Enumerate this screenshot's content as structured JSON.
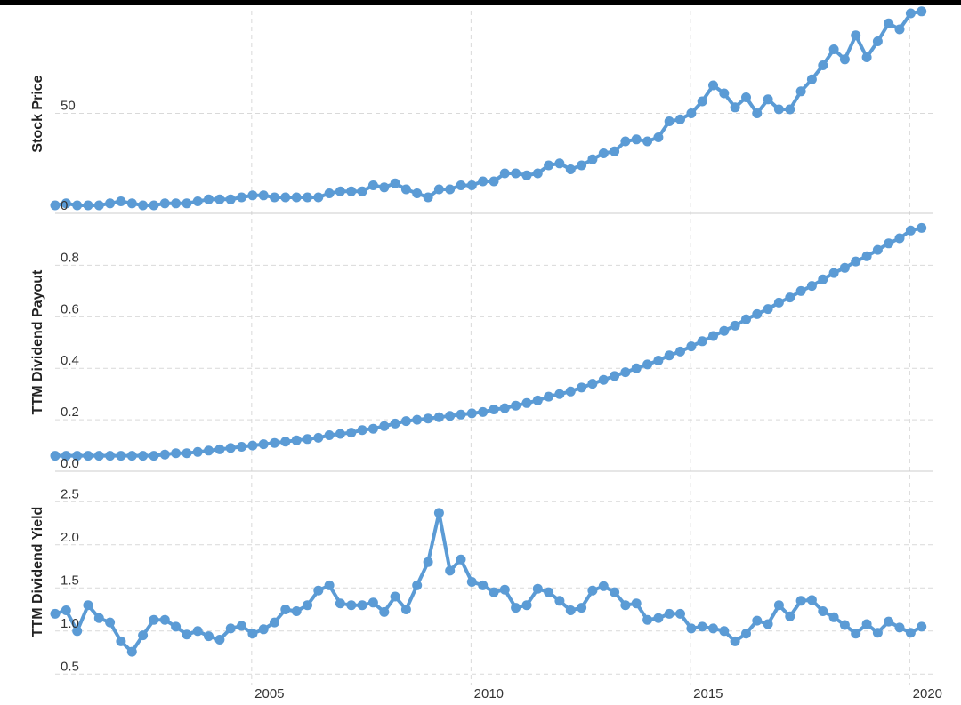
{
  "colors": {
    "series": "#5b9bd5",
    "grid": "#d9d9d9",
    "text": "#333333",
    "top_bar": "#000000"
  },
  "x_ticks": [
    "2005",
    "2010",
    "2015",
    "2020"
  ],
  "chart_data": [
    {
      "type": "line",
      "ylabel": "Stock Price",
      "y_ticks": [
        "0",
        "50"
      ],
      "xlim": [
        2000.5,
        2020.5
      ],
      "ylim": [
        0,
        100
      ],
      "grid": true,
      "series": [
        {
          "x": [
            2000.5,
            2000.75,
            2001,
            2001.25,
            2001.5,
            2001.75,
            2002,
            2002.25,
            2002.5,
            2002.75,
            2003,
            2003.25,
            2003.5,
            2003.75,
            2004,
            2004.25,
            2004.5,
            2004.75,
            2005,
            2005.25,
            2005.5,
            2005.75,
            2006,
            2006.25,
            2006.5,
            2006.75,
            2007,
            2007.25,
            2007.5,
            2007.75,
            2008,
            2008.25,
            2008.5,
            2008.75,
            2009,
            2009.25,
            2009.5,
            2009.75,
            2010,
            2010.25,
            2010.5,
            2010.75,
            2011,
            2011.25,
            2011.5,
            2011.75,
            2012,
            2012.25,
            2012.5,
            2012.75,
            2013,
            2013.25,
            2013.5,
            2013.75,
            2014,
            2014.25,
            2014.5,
            2014.75,
            2015,
            2015.25,
            2015.5,
            2015.75,
            2016,
            2016.25,
            2016.5,
            2016.75,
            2017,
            2017.25,
            2017.5,
            2017.75,
            2018,
            2018.25,
            2018.5,
            2018.75,
            2019,
            2019.25,
            2019.5,
            2019.75,
            2020,
            2020.25
          ],
          "values": [
            4,
            5,
            4,
            4,
            4,
            5,
            6,
            5,
            4,
            4,
            5,
            5,
            5,
            6,
            7,
            7,
            7,
            8,
            9,
            9,
            8,
            8,
            8,
            8,
            8,
            10,
            11,
            11,
            11,
            14,
            13,
            15,
            12,
            10,
            8,
            12,
            12,
            14,
            14,
            16,
            16,
            20,
            20,
            19,
            20,
            24,
            25,
            22,
            24,
            27,
            30,
            31,
            36,
            37,
            36,
            38,
            46,
            47,
            50,
            56,
            64,
            60,
            53,
            58,
            50,
            57,
            52,
            52,
            61,
            67,
            74,
            82,
            77,
            89,
            78,
            86,
            95,
            92,
            100,
            101
          ]
        }
      ]
    },
    {
      "type": "line",
      "ylabel": "TTM Dividend Payout",
      "y_ticks": [
        "0.0",
        "0.2",
        "0.4",
        "0.6",
        "0.8"
      ],
      "xlim": [
        2000.5,
        2020.5
      ],
      "ylim": [
        0,
        0.95
      ],
      "grid": true,
      "series": [
        {
          "x": [
            2000.5,
            2000.75,
            2001,
            2001.25,
            2001.5,
            2001.75,
            2002,
            2002.25,
            2002.5,
            2002.75,
            2003,
            2003.25,
            2003.5,
            2003.75,
            2004,
            2004.25,
            2004.5,
            2004.75,
            2005,
            2005.25,
            2005.5,
            2005.75,
            2006,
            2006.25,
            2006.5,
            2006.75,
            2007,
            2007.25,
            2007.5,
            2007.75,
            2008,
            2008.25,
            2008.5,
            2008.75,
            2009,
            2009.25,
            2009.5,
            2009.75,
            2010,
            2010.25,
            2010.5,
            2010.75,
            2011,
            2011.25,
            2011.5,
            2011.75,
            2012,
            2012.25,
            2012.5,
            2012.75,
            2013,
            2013.25,
            2013.5,
            2013.75,
            2014,
            2014.25,
            2014.5,
            2014.75,
            2015,
            2015.25,
            2015.5,
            2015.75,
            2016,
            2016.25,
            2016.5,
            2016.75,
            2017,
            2017.25,
            2017.5,
            2017.75,
            2018,
            2018.25,
            2018.5,
            2018.75,
            2019,
            2019.25,
            2019.5,
            2019.75,
            2020,
            2020.25
          ],
          "values": [
            0.06,
            0.06,
            0.06,
            0.06,
            0.06,
            0.06,
            0.06,
            0.06,
            0.06,
            0.06,
            0.065,
            0.07,
            0.07,
            0.075,
            0.08,
            0.085,
            0.09,
            0.095,
            0.1,
            0.105,
            0.11,
            0.115,
            0.12,
            0.125,
            0.13,
            0.14,
            0.145,
            0.15,
            0.16,
            0.165,
            0.175,
            0.185,
            0.195,
            0.2,
            0.205,
            0.21,
            0.215,
            0.22,
            0.225,
            0.23,
            0.24,
            0.245,
            0.255,
            0.265,
            0.275,
            0.29,
            0.3,
            0.31,
            0.325,
            0.34,
            0.355,
            0.37,
            0.385,
            0.4,
            0.415,
            0.43,
            0.45,
            0.465,
            0.485,
            0.505,
            0.525,
            0.545,
            0.565,
            0.59,
            0.61,
            0.63,
            0.655,
            0.675,
            0.7,
            0.72,
            0.745,
            0.77,
            0.79,
            0.815,
            0.835,
            0.86,
            0.885,
            0.905,
            0.935,
            0.945
          ]
        }
      ]
    },
    {
      "type": "line",
      "ylabel": "TTM Dividend Yield",
      "y_ticks": [
        "0.5",
        "1.0",
        "1.5",
        "2.0",
        "2.5"
      ],
      "xlim": [
        2000.5,
        2020.5
      ],
      "ylim": [
        0.4,
        2.75
      ],
      "grid": true,
      "series": [
        {
          "x": [
            2000.5,
            2000.75,
            2001,
            2001.25,
            2001.5,
            2001.75,
            2002,
            2002.25,
            2002.5,
            2002.75,
            2003,
            2003.25,
            2003.5,
            2003.75,
            2004,
            2004.25,
            2004.5,
            2004.75,
            2005,
            2005.25,
            2005.5,
            2005.75,
            2006,
            2006.25,
            2006.5,
            2006.75,
            2007,
            2007.25,
            2007.5,
            2007.75,
            2008,
            2008.25,
            2008.5,
            2008.75,
            2009,
            2009.25,
            2009.5,
            2009.75,
            2010,
            2010.25,
            2010.5,
            2010.75,
            2011,
            2011.25,
            2011.5,
            2011.75,
            2012,
            2012.25,
            2012.5,
            2012.75,
            2013,
            2013.25,
            2013.5,
            2013.75,
            2014,
            2014.25,
            2014.5,
            2014.75,
            2015,
            2015.25,
            2015.5,
            2015.75,
            2016,
            2016.25,
            2016.5,
            2016.75,
            2017,
            2017.25,
            2017.5,
            2017.75,
            2018,
            2018.25,
            2018.5,
            2018.75,
            2019,
            2019.25,
            2019.5,
            2019.75,
            2020,
            2020.25
          ],
          "values": [
            1.2,
            1.24,
            1.0,
            1.3,
            1.15,
            1.1,
            0.88,
            0.76,
            0.95,
            1.13,
            1.13,
            1.05,
            0.96,
            1.0,
            0.94,
            0.9,
            1.03,
            1.06,
            0.97,
            1.02,
            1.1,
            1.25,
            1.23,
            1.3,
            1.47,
            1.53,
            1.32,
            1.3,
            1.3,
            1.33,
            1.22,
            1.4,
            1.25,
            1.53,
            1.8,
            2.37,
            1.7,
            1.83,
            1.57,
            1.53,
            1.45,
            1.48,
            1.27,
            1.3,
            1.49,
            1.45,
            1.35,
            1.24,
            1.27,
            1.47,
            1.52,
            1.45,
            1.3,
            1.32,
            1.13,
            1.15,
            1.2,
            1.2,
            1.03,
            1.05,
            1.03,
            1.0,
            0.88,
            0.97,
            1.12,
            1.08,
            1.3,
            1.17,
            1.35,
            1.36,
            1.23,
            1.16,
            1.07,
            0.97,
            1.08,
            0.98,
            1.11,
            1.04,
            0.98,
            1.05
          ]
        }
      ]
    }
  ]
}
